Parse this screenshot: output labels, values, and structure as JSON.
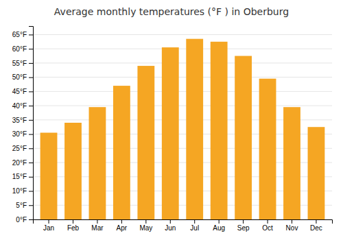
{
  "chart_data": {
    "type": "bar",
    "title": "Average monthly temperatures (°F ) in Oberburg",
    "categories": [
      "Jan",
      "Feb",
      "Mar",
      "Apr",
      "May",
      "Jun",
      "Jul",
      "Aug",
      "Sep",
      "Oct",
      "Nov",
      "Dec"
    ],
    "values": [
      30.5,
      34.0,
      39.5,
      47.0,
      54.0,
      60.5,
      63.5,
      62.5,
      57.5,
      49.5,
      39.5,
      32.5
    ],
    "color": "#F5A623",
    "ylim": [
      0,
      68
    ],
    "yticks": [
      {
        "value": 0,
        "label": "0°F"
      },
      {
        "value": 5,
        "label": "5°F"
      },
      {
        "value": 10,
        "label": "10°F"
      },
      {
        "value": 15,
        "label": "15°F"
      },
      {
        "value": 20,
        "label": "20°F"
      },
      {
        "value": 25,
        "label": "25°F"
      },
      {
        "value": 30,
        "label": "30°F"
      },
      {
        "value": 35,
        "label": "35°F"
      },
      {
        "value": 40,
        "label": "40°F"
      },
      {
        "value": 45,
        "label": "45°F"
      },
      {
        "value": 50,
        "label": "50°F"
      },
      {
        "value": 55,
        "label": "55°F"
      },
      {
        "value": 60,
        "label": "60°F"
      },
      {
        "value": 65,
        "label": "65°F"
      }
    ],
    "grid": true
  }
}
